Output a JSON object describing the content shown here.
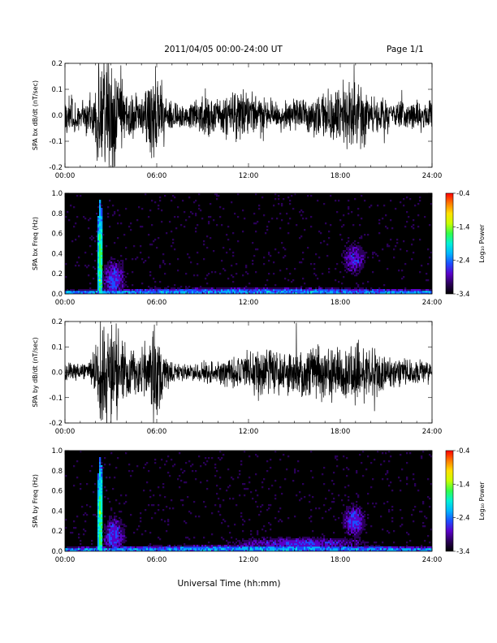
{
  "header": {
    "title": "2011/04/05  00:00-24:00 UT",
    "page": "Page 1/1"
  },
  "xlabel": "Universal Time (hh:mm)",
  "colors": {
    "trace": "#000000",
    "spectrogram_background": "#000000",
    "colormap": [
      "#000000",
      "#2a0058",
      "#5a00c8",
      "#1c4cff",
      "#00b4ff",
      "#00f0d8",
      "#30ff4a",
      "#c8ff00",
      "#ffe000",
      "#ff7a00",
      "#ff0000"
    ]
  },
  "chart_data": [
    {
      "type": "line",
      "ylabel": "SPA bx dB/dt (nT/sec)",
      "x_ticks": [
        "00:00",
        "06:00",
        "12:00",
        "18:00",
        "24:00"
      ],
      "xlim": [
        0,
        24
      ],
      "y_ticks": [
        "-0.2",
        "-0.1",
        "0.0",
        "0.1",
        "0.2"
      ],
      "y_tick_values": [
        -0.2,
        -0.1,
        0.0,
        0.1,
        0.2
      ],
      "ylim": [
        -0.2,
        0.2
      ],
      "envelope": {
        "x_hours": [
          0,
          0.5,
          1,
          1.5,
          2.0,
          2.2,
          2.5,
          2.8,
          3.2,
          3.6,
          4,
          4.5,
          5,
          5.5,
          5.9,
          6.1,
          6.4,
          7,
          8,
          9,
          9.5,
          10,
          10.5,
          11,
          12,
          12.5,
          13,
          14,
          15,
          16,
          17,
          17.5,
          18,
          18.5,
          19,
          19.5,
          20,
          21,
          22,
          23,
          24
        ],
        "amplitude": [
          0.09,
          0.09,
          0.07,
          0.08,
          0.12,
          0.25,
          0.25,
          0.25,
          0.25,
          0.18,
          0.11,
          0.1,
          0.12,
          0.16,
          0.25,
          0.25,
          0.14,
          0.07,
          0.06,
          0.08,
          0.09,
          0.07,
          0.1,
          0.11,
          0.11,
          0.1,
          0.08,
          0.07,
          0.08,
          0.09,
          0.1,
          0.13,
          0.14,
          0.16,
          0.17,
          0.14,
          0.11,
          0.08,
          0.07,
          0.07,
          0.06
        ]
      }
    },
    {
      "type": "heatmap",
      "ylabel": "SPA bx Freq (Hz)",
      "x_ticks": [
        "00:00",
        "06:00",
        "12:00",
        "18:00",
        "24:00"
      ],
      "xlim": [
        0,
        24
      ],
      "y_ticks": [
        "0.0",
        "0.2",
        "0.4",
        "0.6",
        "0.8",
        "1.0"
      ],
      "y_tick_values": [
        0,
        0.2,
        0.4,
        0.6,
        0.8,
        1.0
      ],
      "ylim": [
        0,
        1.0
      ],
      "colorbar": {
        "label": "Log₁₀ Power",
        "ticks": [
          "-0.4",
          "-1.4",
          "-2.4",
          "-3.4"
        ],
        "tick_values": [
          -0.4,
          -1.4,
          -2.4,
          -3.4
        ],
        "range": [
          -3.4,
          -0.4
        ]
      },
      "hotspots": [
        {
          "x_hours": 2.3,
          "f_hz": 0.3,
          "width_hours": 0.3,
          "height_hz": 1.0,
          "power": -1.6
        },
        {
          "x_hours": 3.2,
          "f_hz": 0.15,
          "width_hours": 1.4,
          "height_hz": 0.35,
          "power": -2.6
        },
        {
          "x_hours": 18.9,
          "f_hz": 0.35,
          "width_hours": 1.4,
          "height_hz": 0.3,
          "power": -2.7
        },
        {
          "x_hours": 13,
          "f_hz": 0.03,
          "width_hours": 22,
          "height_hz": 0.05,
          "power": -2.4
        }
      ]
    },
    {
      "type": "line",
      "ylabel": "SPA by dB/dt (nT/sec)",
      "x_ticks": [
        "00:00",
        "06:00",
        "12:00",
        "18:00",
        "24:00"
      ],
      "xlim": [
        0,
        24
      ],
      "y_ticks": [
        "-0.2",
        "-0.1",
        "0.0",
        "0.1",
        "0.2"
      ],
      "y_tick_values": [
        -0.2,
        -0.1,
        0.0,
        0.1,
        0.2
      ],
      "ylim": [
        -0.2,
        0.2
      ],
      "envelope": {
        "x_hours": [
          0,
          0.5,
          1,
          1.5,
          2.0,
          2.2,
          2.5,
          2.8,
          3.2,
          3.6,
          4,
          4.5,
          5,
          5.5,
          5.9,
          6.1,
          6.4,
          7,
          8,
          9,
          9.5,
          10,
          10.5,
          11,
          12,
          12.5,
          13,
          14,
          15,
          16,
          17,
          17.5,
          18,
          18.5,
          19,
          19.5,
          20,
          21,
          22,
          23,
          24
        ],
        "amplitude": [
          0.05,
          0.05,
          0.04,
          0.05,
          0.12,
          0.25,
          0.25,
          0.25,
          0.25,
          0.2,
          0.12,
          0.1,
          0.12,
          0.15,
          0.25,
          0.25,
          0.1,
          0.05,
          0.04,
          0.05,
          0.06,
          0.05,
          0.07,
          0.09,
          0.09,
          0.1,
          0.11,
          0.1,
          0.11,
          0.12,
          0.12,
          0.13,
          0.13,
          0.14,
          0.15,
          0.14,
          0.12,
          0.09,
          0.07,
          0.06,
          0.05
        ]
      }
    },
    {
      "type": "heatmap",
      "ylabel": "SPA by Freq (Hz)",
      "x_ticks": [
        "00:00",
        "06:00",
        "12:00",
        "18:00",
        "24:00"
      ],
      "xlim": [
        0,
        24
      ],
      "y_ticks": [
        "0.0",
        "0.2",
        "0.4",
        "0.6",
        "0.8",
        "1.0"
      ],
      "y_tick_values": [
        0,
        0.2,
        0.4,
        0.6,
        0.8,
        1.0
      ],
      "ylim": [
        0,
        1.0
      ],
      "colorbar": {
        "label": "Log₁₀ Power",
        "ticks": [
          "-0.4",
          "-1.4",
          "-2.4",
          "-3.4"
        ],
        "tick_values": [
          -0.4,
          -1.4,
          -2.4,
          -3.4
        ],
        "range": [
          -3.4,
          -0.4
        ]
      },
      "hotspots": [
        {
          "x_hours": 2.3,
          "f_hz": 0.3,
          "width_hours": 0.3,
          "height_hz": 1.0,
          "power": -1.6
        },
        {
          "x_hours": 3.2,
          "f_hz": 0.15,
          "width_hours": 1.4,
          "height_hz": 0.35,
          "power": -2.6
        },
        {
          "x_hours": 18.9,
          "f_hz": 0.3,
          "width_hours": 1.4,
          "height_hz": 0.3,
          "power": -2.6
        },
        {
          "x_hours": 15.5,
          "f_hz": 0.08,
          "width_hours": 9,
          "height_hz": 0.12,
          "power": -2.7
        },
        {
          "x_hours": 13,
          "f_hz": 0.03,
          "width_hours": 22,
          "height_hz": 0.05,
          "power": -2.3
        }
      ]
    }
  ]
}
